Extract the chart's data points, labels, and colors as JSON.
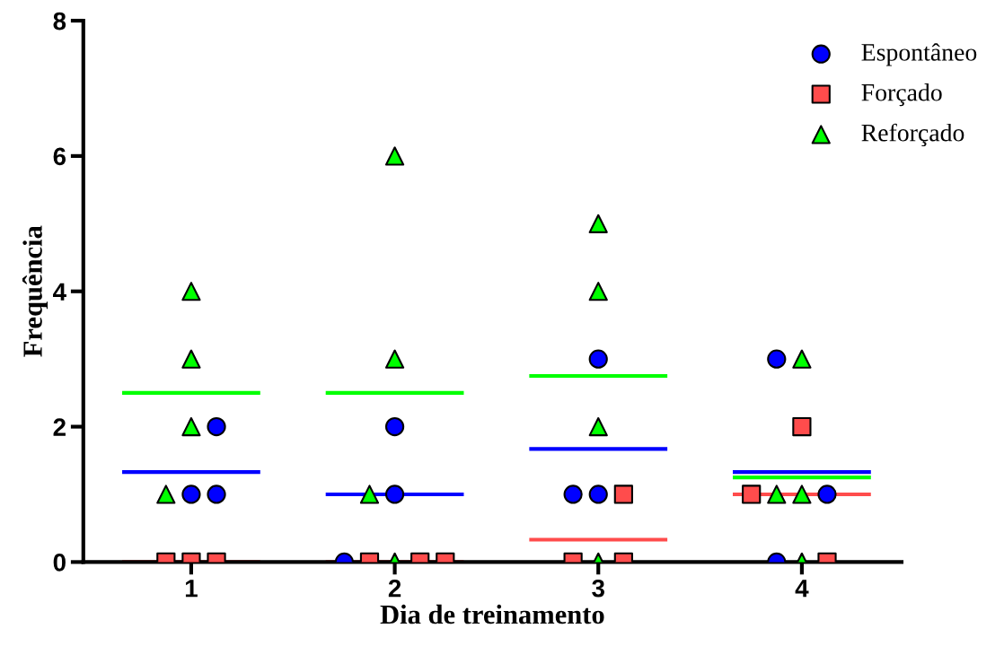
{
  "chart_data": {
    "type": "scatter",
    "xlabel": "Dia de treinamento",
    "ylabel": "Frequência",
    "xlim": [
      0.47,
      4.49
    ],
    "xticks": [
      1,
      2,
      3,
      4
    ],
    "ylim": [
      0,
      8
    ],
    "yticks": [
      0,
      2,
      4,
      6,
      8
    ],
    "grid": false,
    "legend": "top right",
    "series": [
      {
        "name": "Espontâneo",
        "color": "#0000ff",
        "marker": "circle",
        "x": [
          1.0,
          1.124,
          1.124,
          1.752,
          2.0,
          2.0,
          2.876,
          3.0,
          3.0,
          3.876,
          4.124,
          3.876
        ],
        "values": [
          1,
          1,
          2,
          0,
          1,
          2,
          1,
          1,
          3,
          3,
          1,
          0
        ]
      },
      {
        "name": "Forçado",
        "color": "#ff4c4c",
        "marker": "square",
        "x": [
          0.876,
          1.0,
          1.124,
          1.876,
          2.124,
          2.248,
          2.876,
          3.124,
          3.124,
          3.752,
          4.0,
          4.124
        ],
        "values": [
          0,
          0,
          0,
          0,
          0,
          0,
          0,
          0,
          1,
          1,
          2,
          0
        ]
      },
      {
        "name": "Reforçado",
        "color": "#00ff00",
        "marker": "triangle",
        "x": [
          0.876,
          1.0,
          1.0,
          1.0,
          1.876,
          2.0,
          2.0,
          2.0,
          3.0,
          3.0,
          3.0,
          3.0,
          3.876,
          4.0,
          4.0,
          4.0
        ],
        "values": [
          1,
          2,
          3,
          4,
          1,
          0,
          3,
          6,
          0,
          2,
          4,
          5,
          1,
          1,
          0,
          3
        ]
      },
      {
        "type": "line",
        "color": "#0000ff",
        "x": [
          0.67,
          1.33,
          1.5,
          1.67,
          2.33,
          2.5,
          2.67,
          3.33,
          3.5,
          3.67,
          4.33
        ],
        "values": [
          1.33,
          1.33,
          null,
          1,
          1,
          null,
          1.67,
          1.67,
          null,
          1.33,
          1.33
        ]
      },
      {
        "type": "line",
        "color": "#ff4c4c",
        "x": [
          0.67,
          1.33,
          1.5,
          1.67,
          2.33,
          2.5,
          2.67,
          3.33,
          3.5,
          3.67,
          4.33
        ],
        "values": [
          0,
          0,
          null,
          0,
          0,
          null,
          0.33,
          0.33,
          null,
          1,
          1
        ]
      },
      {
        "type": "line",
        "color": "#00ff00",
        "x": [
          0.67,
          1.33,
          1.5,
          1.67,
          2.33,
          2.5,
          2.67,
          3.33,
          3.5,
          3.67,
          4.33
        ],
        "values": [
          2.5,
          2.5,
          null,
          2.5,
          2.5,
          null,
          2.75,
          2.75,
          null,
          1.25,
          1.25
        ]
      }
    ]
  }
}
